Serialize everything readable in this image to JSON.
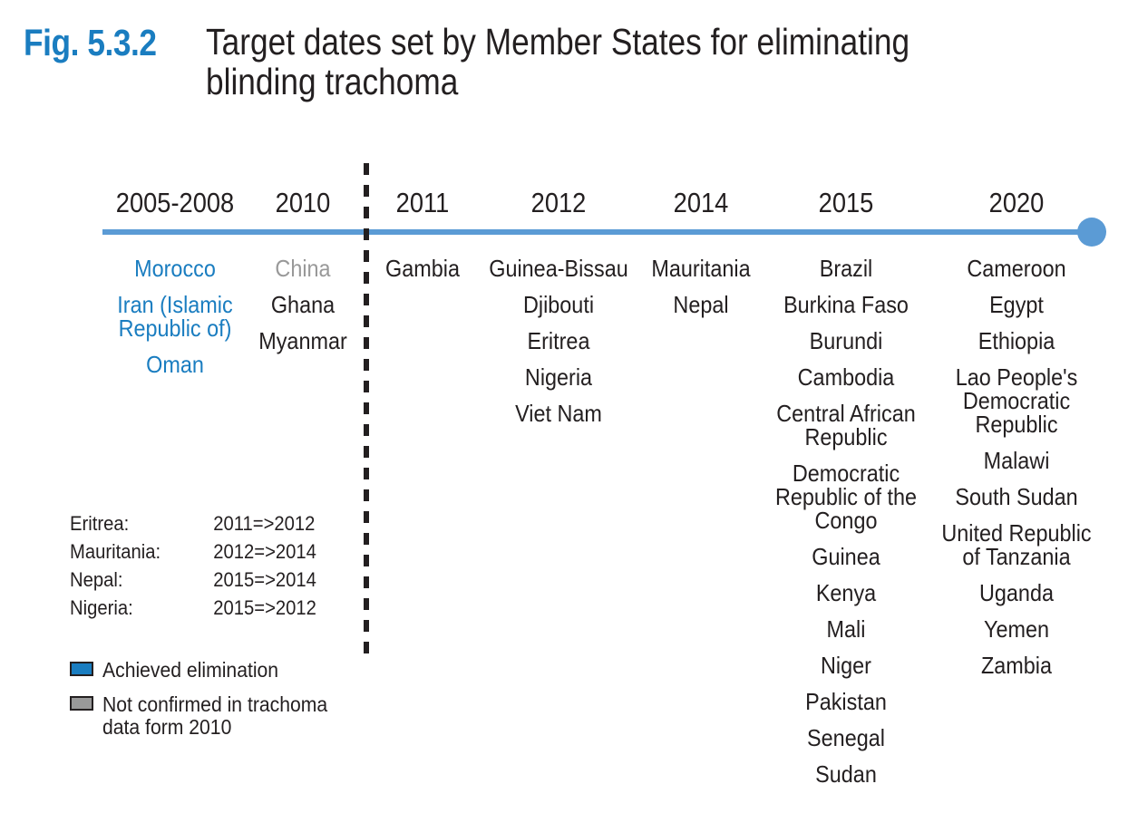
{
  "figure": {
    "number": "Fig. 5.3.2",
    "title": "Target dates set by Member States for eliminating\nblinding trachoma"
  },
  "colors": {
    "accent": "#1a7dc0",
    "axis": "#5b9bd5",
    "achieved": "#1a7dc0",
    "not_confirmed": "#999999",
    "text": "#231f20"
  },
  "timeline": [
    {
      "year": "2005-2008",
      "countries": [
        {
          "name": "Morocco",
          "status": "achieved"
        },
        {
          "name": "Iran (Islamic\nRepublic of)",
          "status": "achieved"
        },
        {
          "name": "Oman",
          "status": "achieved"
        }
      ]
    },
    {
      "year": "2010",
      "countries": [
        {
          "name": "China",
          "status": "not_confirmed"
        },
        {
          "name": "Ghana",
          "status": "normal"
        },
        {
          "name": "Myanmar",
          "status": "normal"
        }
      ]
    },
    {
      "year": "2011",
      "countries": [
        {
          "name": "Gambia",
          "status": "normal"
        }
      ]
    },
    {
      "year": "2012",
      "countries": [
        {
          "name": "Guinea-Bissau",
          "status": "normal"
        },
        {
          "name": "Djibouti",
          "status": "normal"
        },
        {
          "name": "Eritrea",
          "status": "normal"
        },
        {
          "name": "Nigeria",
          "status": "normal"
        },
        {
          "name": "Viet Nam",
          "status": "normal"
        }
      ]
    },
    {
      "year": "2014",
      "countries": [
        {
          "name": "Mauritania",
          "status": "normal"
        },
        {
          "name": "Nepal",
          "status": "normal"
        }
      ]
    },
    {
      "year": "2015",
      "countries": [
        {
          "name": "Brazil",
          "status": "normal"
        },
        {
          "name": "Burkina Faso",
          "status": "normal"
        },
        {
          "name": "Burundi",
          "status": "normal"
        },
        {
          "name": "Cambodia",
          "status": "normal"
        },
        {
          "name": "Central African\nRepublic",
          "status": "normal"
        },
        {
          "name": "Democratic\nRepublic of the\nCongo",
          "status": "normal"
        },
        {
          "name": "Guinea",
          "status": "normal"
        },
        {
          "name": "Kenya",
          "status": "normal"
        },
        {
          "name": "Mali",
          "status": "normal"
        },
        {
          "name": "Niger",
          "status": "normal"
        },
        {
          "name": "Pakistan",
          "status": "normal"
        },
        {
          "name": "Senegal",
          "status": "normal"
        },
        {
          "name": "Sudan",
          "status": "normal"
        }
      ]
    },
    {
      "year": "2020",
      "countries": [
        {
          "name": "Cameroon",
          "status": "normal"
        },
        {
          "name": "Egypt",
          "status": "normal"
        },
        {
          "name": "Ethiopia",
          "status": "normal"
        },
        {
          "name": "Lao People's\nDemocratic\nRepublic",
          "status": "normal"
        },
        {
          "name": "Malawi",
          "status": "normal"
        },
        {
          "name": "South Sudan",
          "status": "normal"
        },
        {
          "name": "United Republic\nof Tanzania",
          "status": "normal"
        },
        {
          "name": "Uganda",
          "status": "normal"
        },
        {
          "name": "Yemen",
          "status": "normal"
        },
        {
          "name": "Zambia",
          "status": "normal"
        }
      ]
    }
  ],
  "date_changes": [
    {
      "country": "Eritrea:",
      "change": "2011=>2012"
    },
    {
      "country": "Mauritania:",
      "change": "2012=>2014"
    },
    {
      "country": "Nepal:",
      "change": "2015=>2014"
    },
    {
      "country": "Nigeria:",
      "change": "2015=>2012"
    }
  ],
  "legend": [
    {
      "label": "Achieved elimination",
      "color": "#1a7dc0"
    },
    {
      "label": "Not confirmed in trachoma\ndata form 2010",
      "color": "#999999"
    }
  ]
}
